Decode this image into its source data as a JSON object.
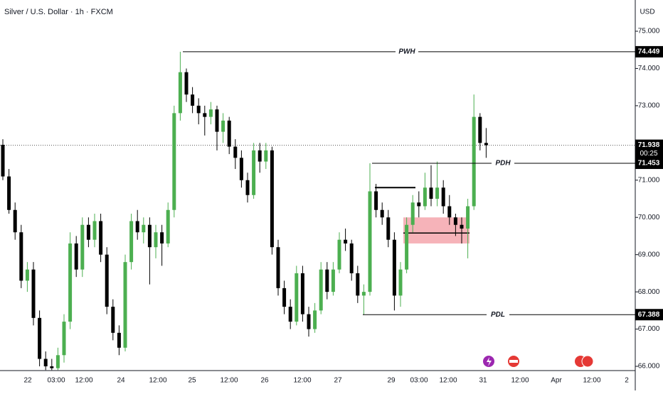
{
  "chart_data": {
    "type": "candlestick",
    "title": "Silver / U.S. Dollar · 1h · FXCM",
    "currency": "USD",
    "ylim": [
      65.886,
      75.839
    ],
    "yticks": [
      {
        "value": 66,
        "label": "66.000"
      },
      {
        "value": 67,
        "label": "67.000"
      },
      {
        "value": 68,
        "label": "68.000"
      },
      {
        "value": 69,
        "label": "69.000"
      },
      {
        "value": 70,
        "label": "70.000"
      },
      {
        "value": 71,
        "label": "71.000"
      },
      {
        "value": 72,
        "label": "72.000"
      },
      {
        "value": 73,
        "label": "73.000"
      },
      {
        "value": 74,
        "label": "74.000"
      },
      {
        "value": 75,
        "label": "75.000"
      }
    ],
    "x_labels": [
      "22",
      "03:00",
      "12:00",
      "24",
      "12:00",
      "25",
      "12:00",
      "26",
      "12:00",
      "27",
      "29",
      "03:00",
      "12:00",
      "31",
      "12:00",
      "Apr",
      "12:00",
      "2"
    ],
    "up_color": "#4caf50",
    "down_color": "#000000",
    "ohlc": [
      [
        71.95,
        72.1,
        71.0,
        71.1
      ],
      [
        71.1,
        71.3,
        70.1,
        70.2
      ],
      [
        70.2,
        70.4,
        69.4,
        69.6
      ],
      [
        69.6,
        69.8,
        68.1,
        68.3
      ],
      [
        68.3,
        68.8,
        68.0,
        68.6
      ],
      [
        68.6,
        68.8,
        67.1,
        67.3
      ],
      [
        67.3,
        67.5,
        66.0,
        66.2
      ],
      [
        66.2,
        66.4,
        65.9,
        66.0
      ],
      [
        66.0,
        66.2,
        65.9,
        65.95
      ],
      [
        65.95,
        66.5,
        65.9,
        66.3
      ],
      [
        66.3,
        67.4,
        66.1,
        67.2
      ],
      [
        67.2,
        69.6,
        67.0,
        69.3
      ],
      [
        69.3,
        69.5,
        68.4,
        68.6
      ],
      [
        68.6,
        70.0,
        68.4,
        69.8
      ],
      [
        69.8,
        70.0,
        69.2,
        69.4
      ],
      [
        69.4,
        70.1,
        69.2,
        69.9
      ],
      [
        69.9,
        70.1,
        68.8,
        69.0
      ],
      [
        69.0,
        69.2,
        67.4,
        67.6
      ],
      [
        67.6,
        67.8,
        66.7,
        66.9
      ],
      [
        66.9,
        67.1,
        66.3,
        66.5
      ],
      [
        66.5,
        69.0,
        66.4,
        68.8
      ],
      [
        68.8,
        70.1,
        68.6,
        69.9
      ],
      [
        69.9,
        70.2,
        69.4,
        69.6
      ],
      [
        69.6,
        70.0,
        69.3,
        69.8
      ],
      [
        69.8,
        70.0,
        68.2,
        69.2
      ],
      [
        69.2,
        69.8,
        68.9,
        69.6
      ],
      [
        69.6,
        69.8,
        68.7,
        69.3
      ],
      [
        69.3,
        70.4,
        69.2,
        70.2
      ],
      [
        70.2,
        73.0,
        70.0,
        72.8
      ],
      [
        72.8,
        74.449,
        72.6,
        73.9
      ],
      [
        73.9,
        74.0,
        73.1,
        73.3
      ],
      [
        73.3,
        73.5,
        72.8,
        73.0
      ],
      [
        73.0,
        73.2,
        72.5,
        72.8
      ],
      [
        72.8,
        73.0,
        72.2,
        72.7
      ],
      [
        72.7,
        73.1,
        72.5,
        72.9
      ],
      [
        72.9,
        73.0,
        71.8,
        72.3
      ],
      [
        72.3,
        72.8,
        72.0,
        72.6
      ],
      [
        72.6,
        72.7,
        71.7,
        71.9
      ],
      [
        71.9,
        72.1,
        71.3,
        71.6
      ],
      [
        71.6,
        71.8,
        70.8,
        71.0
      ],
      [
        71.0,
        71.2,
        70.4,
        70.6
      ],
      [
        70.6,
        72.0,
        70.5,
        71.8
      ],
      [
        71.8,
        72.0,
        71.2,
        71.5
      ],
      [
        71.5,
        72.0,
        71.3,
        71.8
      ],
      [
        71.8,
        71.9,
        69.0,
        69.2
      ],
      [
        69.2,
        69.4,
        67.9,
        68.1
      ],
      [
        68.1,
        68.3,
        67.4,
        67.6
      ],
      [
        67.6,
        67.8,
        67.0,
        67.2
      ],
      [
        67.2,
        68.7,
        67.1,
        68.5
      ],
      [
        68.5,
        68.7,
        67.2,
        67.4
      ],
      [
        67.4,
        67.6,
        66.8,
        67.0
      ],
      [
        67.0,
        67.7,
        66.9,
        67.5
      ],
      [
        67.5,
        68.8,
        67.4,
        68.6
      ],
      [
        68.6,
        68.8,
        67.8,
        68.0
      ],
      [
        68.0,
        68.8,
        67.9,
        68.6
      ],
      [
        68.6,
        69.6,
        68.5,
        69.4
      ],
      [
        69.4,
        69.7,
        69.1,
        69.3
      ],
      [
        69.3,
        69.4,
        68.3,
        68.5
      ],
      [
        68.5,
        68.7,
        67.7,
        67.9
      ],
      [
        67.9,
        68.2,
        67.388,
        68.0
      ],
      [
        68.0,
        71.453,
        67.9,
        70.7
      ],
      [
        70.7,
        70.9,
        70.0,
        70.2
      ],
      [
        70.2,
        70.4,
        69.8,
        70.0
      ],
      [
        70.0,
        70.2,
        69.2,
        69.4
      ],
      [
        69.4,
        69.6,
        67.5,
        67.9
      ],
      [
        67.9,
        68.8,
        67.6,
        68.6
      ],
      [
        68.6,
        70.0,
        68.5,
        69.8
      ],
      [
        69.8,
        70.6,
        69.6,
        70.4
      ],
      [
        70.4,
        70.7,
        70.0,
        70.3
      ],
      [
        70.3,
        71.2,
        70.2,
        70.8
      ],
      [
        70.8,
        71.4,
        70.3,
        70.5
      ],
      [
        70.5,
        71.5,
        70.3,
        70.8
      ],
      [
        70.8,
        71.0,
        70.1,
        70.3
      ],
      [
        70.3,
        70.6,
        69.8,
        70.0
      ],
      [
        70.0,
        70.1,
        69.5,
        69.8
      ],
      [
        69.8,
        70.0,
        69.3,
        69.7
      ],
      [
        69.7,
        70.5,
        68.9,
        70.3
      ],
      [
        70.3,
        73.3,
        70.2,
        72.7
      ],
      [
        72.7,
        72.8,
        71.8,
        72.0
      ],
      [
        72.0,
        72.4,
        71.6,
        71.94
      ]
    ],
    "levels": [
      {
        "name": "PWH",
        "value": 74.449,
        "label": "74.449"
      },
      {
        "name": "PDH",
        "value": 71.453,
        "label": "71.453"
      },
      {
        "name": "PDL",
        "value": 67.388,
        "label": "67.388"
      }
    ],
    "current_price": {
      "value": 71.938,
      "label": "71.938",
      "countdown": "00:25"
    },
    "marked_high": 70.8,
    "zone": {
      "top": 70.0,
      "bottom": 69.3,
      "mid": 69.58,
      "color": "#f4a6ad"
    }
  }
}
